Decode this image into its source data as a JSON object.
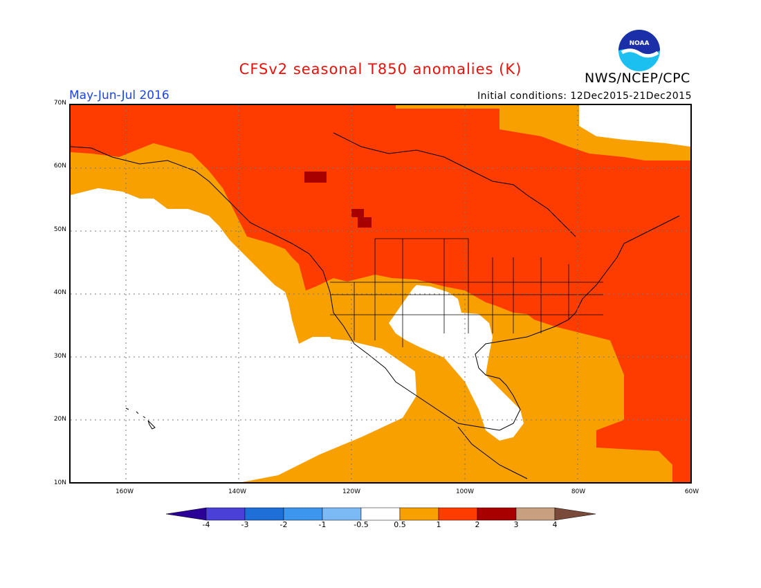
{
  "title": "CFSv2 seasonal T850 anomalies (K)",
  "season": "May-Jun-Jul 2016",
  "initial_conditions": "Initial conditions: 12Dec2015-21Dec2015",
  "agency": "NWS/NCEP/CPC",
  "logo_text": "NOAA",
  "lat_labels": [
    "70N",
    "60N",
    "50N",
    "40N",
    "30N",
    "20N",
    "10N"
  ],
  "lon_labels": [
    "160W",
    "140W",
    "120W",
    "100W",
    "80W",
    "60W"
  ],
  "colorbar": {
    "labels": [
      "-4",
      "-3",
      "-2",
      "-1",
      "-0.5",
      "0.5",
      "1",
      "2",
      "3",
      "4"
    ],
    "colors": [
      "#2a0096",
      "#4a3fd6",
      "#1f6fd8",
      "#3c96ee",
      "#7bbaf4",
      "#ffffff",
      "#f7a000",
      "#ff3c00",
      "#a80000",
      "#c8a080",
      "#7a4a3a"
    ]
  },
  "map_colors": {
    "anomaly_0_5_to_1": "#f7a000",
    "anomaly_1_to_2": "#ff3c00",
    "anomaly_2_to_3": "#a80000",
    "neutral": "#ffffff"
  }
}
